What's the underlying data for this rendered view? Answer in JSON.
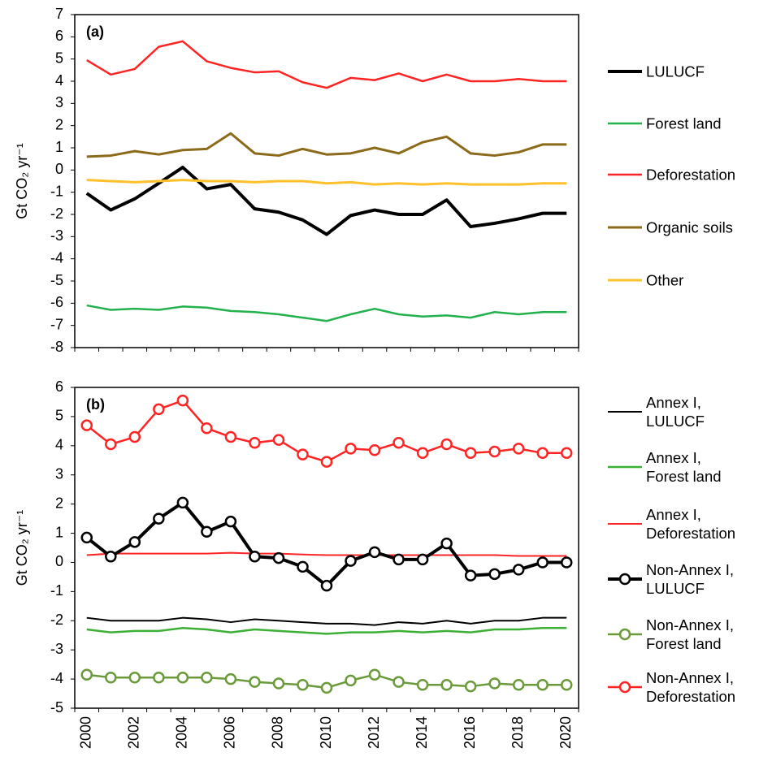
{
  "chart_data": [
    {
      "type": "line",
      "label": "(a)",
      "y_label": "Gt CO₂ yr⁻¹",
      "categories": [
        null,
        null,
        null,
        null,
        null,
        null,
        null,
        null,
        null,
        null,
        null,
        null,
        null,
        null,
        null,
        null,
        null,
        null,
        null,
        null,
        null
      ],
      "ylim": [
        -8,
        7
      ],
      "yticks": [
        -8,
        -7,
        -6,
        -5,
        -4,
        -3,
        -2,
        -1,
        0,
        1,
        2,
        3,
        4,
        5,
        6,
        7
      ],
      "series": [
        {
          "name": "LULUCF",
          "color": "#000000",
          "width": 4,
          "values": [
            -1.05,
            -1.8,
            -1.3,
            -0.6,
            0.12,
            -0.85,
            -0.65,
            -1.75,
            -1.9,
            -2.25,
            -2.9,
            -2.05,
            -1.8,
            -2.0,
            -2.0,
            -1.35,
            -2.55,
            -2.4,
            -2.2,
            -1.95,
            -1.95
          ]
        },
        {
          "name": "Forest land",
          "color": "#22b14c",
          "width": 2.5,
          "values": [
            -6.1,
            -6.3,
            -6.25,
            -6.3,
            -6.15,
            -6.2,
            -6.35,
            -6.4,
            -6.5,
            -6.65,
            -6.8,
            -6.5,
            -6.25,
            -6.5,
            -6.6,
            -6.55,
            -6.65,
            -6.4,
            -6.5,
            -6.4,
            -6.4
          ]
        },
        {
          "name": "Deforestation",
          "color": "#ff2424",
          "width": 2.5,
          "values": [
            4.95,
            4.3,
            4.55,
            5.55,
            5.8,
            4.9,
            4.6,
            4.4,
            4.45,
            3.95,
            3.7,
            4.15,
            4.05,
            4.35,
            4.0,
            4.3,
            4.0,
            4.0,
            4.1,
            4.0,
            4.0
          ]
        },
        {
          "name": "Organic soils",
          "color": "#8b6a1a",
          "width": 3,
          "values": [
            0.6,
            0.65,
            0.85,
            0.7,
            0.9,
            0.95,
            1.65,
            0.75,
            0.65,
            0.95,
            0.7,
            0.75,
            1.0,
            0.75,
            1.25,
            1.5,
            0.75,
            0.65,
            0.8,
            1.15,
            1.15
          ]
        },
        {
          "name": "Other",
          "color": "#ffc12b",
          "width": 3,
          "values": [
            -0.45,
            -0.5,
            -0.55,
            -0.5,
            -0.45,
            -0.5,
            -0.5,
            -0.55,
            -0.5,
            -0.5,
            -0.6,
            -0.55,
            -0.65,
            -0.6,
            -0.65,
            -0.6,
            -0.65,
            -0.65,
            -0.65,
            -0.6,
            -0.6
          ]
        }
      ]
    },
    {
      "type": "line",
      "label": "(b)",
      "y_label": "Gt CO₂ yr⁻¹",
      "categories": [
        "2000",
        null,
        "2002",
        null,
        "2004",
        null,
        "2006",
        null,
        "2008",
        null,
        "2010",
        null,
        "2012",
        null,
        "2014",
        null,
        "2016",
        null,
        "2018",
        null,
        "2020"
      ],
      "ylim": [
        -5,
        6
      ],
      "yticks": [
        -5,
        -4,
        -3,
        -2,
        -1,
        0,
        1,
        2,
        3,
        4,
        5,
        6
      ],
      "series": [
        {
          "name": "Annex I,\nLULUCF",
          "color": "#000000",
          "width": 2,
          "values": [
            -1.9,
            -2.0,
            -2.0,
            -2.0,
            -1.9,
            -1.95,
            -2.05,
            -1.95,
            -2.0,
            -2.05,
            -2.1,
            -2.1,
            -2.15,
            -2.05,
            -2.1,
            -2.0,
            -2.1,
            -2.0,
            -2.0,
            -1.9,
            -1.9
          ]
        },
        {
          "name": "Annex I,\nForest land",
          "color": "#3cb034",
          "width": 2.5,
          "values": [
            -2.3,
            -2.4,
            -2.35,
            -2.35,
            -2.25,
            -2.3,
            -2.4,
            -2.3,
            -2.35,
            -2.4,
            -2.45,
            -2.4,
            -2.4,
            -2.35,
            -2.4,
            -2.35,
            -2.4,
            -2.3,
            -2.3,
            -2.25,
            -2.25
          ]
        },
        {
          "name": "Annex I,\nDeforestation",
          "color": "#ff2424",
          "width": 2,
          "values": [
            0.25,
            0.3,
            0.3,
            0.3,
            0.3,
            0.3,
            0.33,
            0.3,
            0.3,
            0.27,
            0.25,
            0.25,
            0.25,
            0.25,
            0.25,
            0.25,
            0.25,
            0.25,
            0.22,
            0.22,
            0.22
          ]
        },
        {
          "name": "Non-Annex I,\nLULUCF",
          "color": "#000000",
          "width": 4,
          "marker": "circle",
          "values": [
            0.85,
            0.2,
            0.7,
            1.5,
            2.05,
            1.05,
            1.4,
            0.2,
            0.15,
            -0.15,
            -0.8,
            0.05,
            0.35,
            0.1,
            0.1,
            0.65,
            -0.45,
            -0.4,
            -0.25,
            0.0,
            0.0
          ]
        },
        {
          "name": "Non-Annex I,\nForest land",
          "color": "#6a9a3a",
          "width": 2.5,
          "marker": "circle",
          "values": [
            -3.85,
            -3.95,
            -3.95,
            -3.95,
            -3.95,
            -3.95,
            -4.0,
            -4.1,
            -4.15,
            -4.2,
            -4.3,
            -4.05,
            -3.85,
            -4.1,
            -4.2,
            -4.2,
            -4.25,
            -4.15,
            -4.2,
            -4.2,
            -4.2
          ]
        },
        {
          "name": "Non-Annex I,\nDeforestation",
          "color": "#ff2424",
          "width": 2.5,
          "marker": "circle",
          "values": [
            4.7,
            4.05,
            4.3,
            5.25,
            5.55,
            4.6,
            4.3,
            4.1,
            4.2,
            3.7,
            3.45,
            3.9,
            3.85,
            4.1,
            3.75,
            4.05,
            3.75,
            3.8,
            3.9,
            3.75,
            3.75
          ]
        }
      ]
    }
  ]
}
